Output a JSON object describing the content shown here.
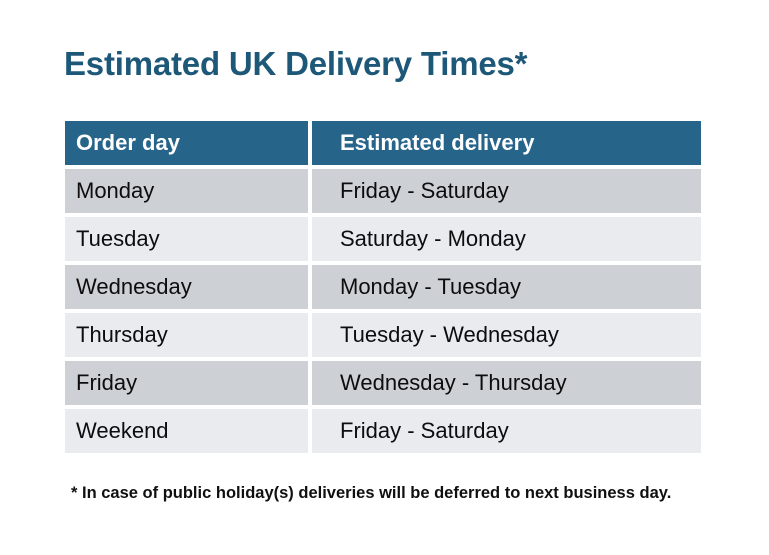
{
  "page": {
    "title": "Estimated UK Delivery Times*",
    "footnote": "* In case of public holiday(s) deliveries will be deferred to next business day."
  },
  "table": {
    "headers": [
      "Order day",
      "Estimated delivery"
    ],
    "rows": [
      [
        "Monday",
        "Friday - Saturday"
      ],
      [
        "Tuesday",
        "Saturday - Monday"
      ],
      [
        "Wednesday",
        "Monday - Tuesday"
      ],
      [
        "Thursday",
        "Tuesday - Wednesday"
      ],
      [
        "Friday",
        "Wednesday - Thursday"
      ],
      [
        "Weekend",
        "Friday - Saturday"
      ]
    ]
  },
  "colors": {
    "title_text": "#1E5878",
    "header_background": "#26648A",
    "header_text": "#FFFFFF",
    "row_alternate_dark": "#CDD1D6",
    "row_alternate_light": "#E9EBEE",
    "body_text": "#0D0D0D",
    "page_background": "#FFFFFF"
  }
}
